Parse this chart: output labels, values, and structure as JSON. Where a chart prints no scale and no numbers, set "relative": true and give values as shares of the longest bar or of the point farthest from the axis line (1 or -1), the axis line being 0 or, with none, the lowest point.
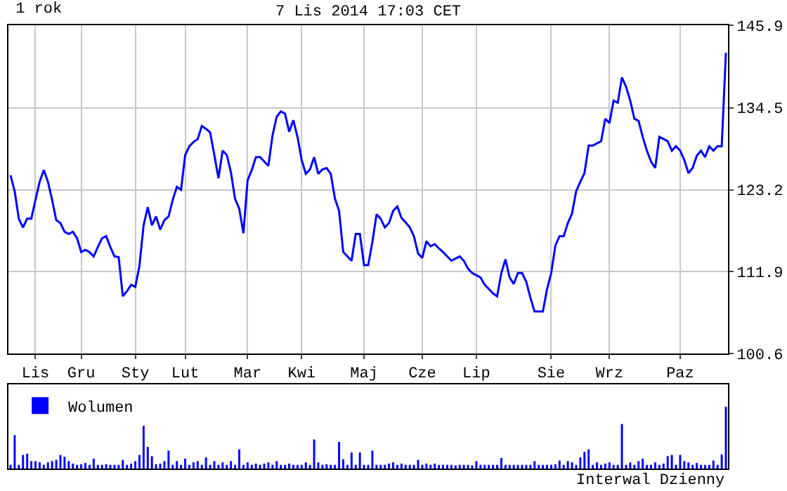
{
  "chart_data": [
    {
      "type": "line",
      "title": "1 rok",
      "subtitle": "7 Lis 2014 17:03 CET",
      "categories": [
        null,
        null,
        null,
        null,
        null,
        null,
        "Lis",
        null,
        null,
        null,
        null,
        null,
        null,
        null,
        null,
        null,
        null,
        "Gru",
        null,
        null,
        null,
        null,
        null,
        null,
        null,
        null,
        null,
        null,
        null,
        null,
        "Sty",
        null,
        null,
        null,
        null,
        null,
        null,
        null,
        null,
        null,
        null,
        null,
        "Lut",
        null,
        null,
        null,
        null,
        null,
        null,
        null,
        null,
        null,
        null,
        null,
        null,
        null,
        null,
        "Mar",
        null,
        null,
        null,
        null,
        null,
        null,
        null,
        null,
        null,
        null,
        null,
        null,
        "Kwi",
        null,
        null,
        null,
        null,
        null,
        null,
        null,
        null,
        null,
        null,
        null,
        null,
        null,
        null,
        "Maj",
        null,
        null,
        null,
        null,
        null,
        null,
        null,
        null,
        null,
        null,
        null,
        null,
        null,
        "Cze",
        null,
        null,
        null,
        null,
        null,
        null,
        null,
        null,
        null,
        null,
        null,
        null,
        "Lip",
        null,
        null,
        null,
        null,
        null,
        null,
        null,
        null,
        null,
        null,
        null,
        null,
        null,
        null,
        null,
        null,
        null,
        "Sie",
        null,
        null,
        null,
        null,
        null,
        null,
        null,
        null,
        null,
        null,
        null,
        null,
        null,
        "Wrz",
        null,
        null,
        null,
        null,
        null,
        null,
        null,
        null,
        null,
        null,
        null,
        null,
        null,
        null,
        null,
        null,
        "Paz",
        null,
        null,
        null,
        null,
        null,
        null,
        null,
        null,
        null,
        null,
        null
      ],
      "ylim": [
        100.6,
        145.9
      ],
      "yticks": [
        100.6,
        111.9,
        123.2,
        134.5,
        145.9
      ],
      "grid": true,
      "legend": false,
      "marker": "none",
      "line_style": "solid",
      "series": [
        {
          "color": "#0000ff",
          "values": [
            125.2,
            123.0,
            119.2,
            118.0,
            119.2,
            119.2,
            121.8,
            124.3,
            125.9,
            124.3,
            121.8,
            119.0,
            118.6,
            117.4,
            117.1,
            117.4,
            116.5,
            114.6,
            114.9,
            114.6,
            114.0,
            115.3,
            116.5,
            116.8,
            115.3,
            114.0,
            113.9,
            108.5,
            109.2,
            110.1,
            109.8,
            112.7,
            118.3,
            120.8,
            118.3,
            119.5,
            117.7,
            119.0,
            119.5,
            121.8,
            123.6,
            123.2,
            128.0,
            129.2,
            129.8,
            130.2,
            132.0,
            131.6,
            131.1,
            128.0,
            124.8,
            128.6,
            128.0,
            125.6,
            121.9,
            120.6,
            117.2,
            124.5,
            125.9,
            127.7,
            127.7,
            127.1,
            126.5,
            130.7,
            133.3,
            134.0,
            133.7,
            131.2,
            132.8,
            130.5,
            127.3,
            125.4,
            126.0,
            127.7,
            125.4,
            126.0,
            126.2,
            125.4,
            122.0,
            120.3,
            114.6,
            114.0,
            113.4,
            117.1,
            117.1,
            112.8,
            112.8,
            116.0,
            119.8,
            119.2,
            118.0,
            118.6,
            120.3,
            120.9,
            119.3,
            118.7,
            118.0,
            116.8,
            114.4,
            113.8,
            116.1,
            115.4,
            115.7,
            115.1,
            114.6,
            114.0,
            113.4,
            113.7,
            114.0,
            113.4,
            112.3,
            111.7,
            111.4,
            111.1,
            110.1,
            109.5,
            108.9,
            108.5,
            111.7,
            113.6,
            111.1,
            110.2,
            111.7,
            111.7,
            110.5,
            108.3,
            106.4,
            106.4,
            106.4,
            109.5,
            111.7,
            115.5,
            116.8,
            116.8,
            118.6,
            119.9,
            123.0,
            124.3,
            125.5,
            129.3,
            129.3,
            129.6,
            129.9,
            133.0,
            132.4,
            135.5,
            135.2,
            138.7,
            137.4,
            135.5,
            133.0,
            132.7,
            130.5,
            128.6,
            127.1,
            126.2,
            130.5,
            130.2,
            129.9,
            128.6,
            129.2,
            128.6,
            127.3,
            125.5,
            126.2,
            127.9,
            128.6,
            127.7,
            129.2,
            128.6,
            129.2,
            129.2,
            142.1
          ]
        }
      ]
    },
    {
      "type": "bar",
      "relative": true,
      "legend": "top left",
      "categories": [
        null,
        null,
        null,
        null,
        null,
        null,
        null,
        null,
        null,
        null,
        null,
        null,
        null,
        null,
        null,
        null,
        null,
        null,
        null,
        null,
        null,
        null,
        null,
        null,
        null,
        null,
        null,
        null,
        null,
        null,
        null,
        null,
        null,
        null,
        null,
        null,
        null,
        null,
        null,
        null,
        null,
        null,
        null,
        null,
        null,
        null,
        null,
        null,
        null,
        null,
        null,
        null,
        null,
        null,
        null,
        null,
        null,
        null,
        null,
        null,
        null,
        null,
        null,
        null,
        null,
        null,
        null,
        null,
        null,
        null,
        null,
        null,
        null,
        null,
        null,
        null,
        null,
        null,
        null,
        null,
        null,
        null,
        null,
        null,
        null,
        null,
        null,
        null,
        null,
        null,
        null,
        null,
        null,
        null,
        null,
        null,
        null,
        null,
        null,
        null,
        null,
        null,
        null,
        null,
        null,
        null,
        null,
        null,
        null,
        null,
        null,
        null,
        null,
        null,
        null,
        null,
        null,
        null,
        null,
        null,
        null,
        null,
        null,
        null,
        null,
        null,
        null,
        null,
        null,
        null,
        null,
        null,
        null,
        null,
        null,
        null,
        null,
        null,
        null,
        null,
        null,
        null,
        null,
        null,
        null,
        null,
        null,
        null,
        null,
        null,
        null,
        null,
        null,
        null,
        null,
        null,
        null,
        null,
        null,
        null,
        null,
        null,
        null,
        null,
        null,
        null,
        null,
        null,
        null,
        null,
        null,
        null,
        null
      ],
      "annotations": [
        "Interwal Dzienny"
      ],
      "series": [
        {
          "name": "Wolumen",
          "color": "#0000ff",
          "values": [
            0.06,
            0.54,
            0.06,
            0.22,
            0.24,
            0.12,
            0.12,
            0.1,
            0.06,
            0.1,
            0.12,
            0.14,
            0.22,
            0.19,
            0.12,
            0.08,
            0.06,
            0.07,
            0.09,
            0.06,
            0.16,
            0.06,
            0.06,
            0.07,
            0.06,
            0.06,
            0.06,
            0.14,
            0.06,
            0.08,
            0.12,
            0.22,
            0.69,
            0.35,
            0.2,
            0.07,
            0.08,
            0.12,
            0.29,
            0.06,
            0.12,
            0.06,
            0.16,
            0.06,
            0.1,
            0.12,
            0.06,
            0.18,
            0.06,
            0.12,
            0.06,
            0.1,
            0.06,
            0.12,
            0.06,
            0.31,
            0.06,
            0.1,
            0.06,
            0.08,
            0.06,
            0.08,
            0.1,
            0.06,
            0.12,
            0.06,
            0.06,
            0.08,
            0.06,
            0.06,
            0.06,
            0.1,
            0.06,
            0.47,
            0.1,
            0.06,
            0.07,
            0.06,
            0.06,
            0.43,
            0.15,
            0.06,
            0.26,
            0.06,
            0.26,
            0.06,
            0.06,
            0.29,
            0.06,
            0.06,
            0.06,
            0.08,
            0.1,
            0.06,
            0.08,
            0.06,
            0.06,
            0.06,
            0.14,
            0.06,
            0.08,
            0.06,
            0.08,
            0.06,
            0.06,
            0.06,
            0.06,
            0.05,
            0.06,
            0.06,
            0.06,
            0.05,
            0.12,
            0.06,
            0.06,
            0.06,
            0.06,
            0.06,
            0.17,
            0.06,
            0.06,
            0.06,
            0.06,
            0.06,
            0.06,
            0.06,
            0.12,
            0.06,
            0.06,
            0.06,
            0.06,
            0.07,
            0.13,
            0.06,
            0.12,
            0.1,
            0.06,
            0.18,
            0.27,
            0.31,
            0.06,
            0.1,
            0.06,
            0.08,
            0.1,
            0.06,
            0.06,
            0.72,
            0.06,
            0.1,
            0.06,
            0.12,
            0.16,
            0.06,
            0.06,
            0.1,
            0.06,
            0.08,
            0.2,
            0.22,
            0.06,
            0.22,
            0.12,
            0.1,
            0.06,
            0.09,
            0.06,
            0.06,
            0.06,
            0.13,
            0.06,
            0.23,
            1.0
          ]
        }
      ]
    }
  ]
}
